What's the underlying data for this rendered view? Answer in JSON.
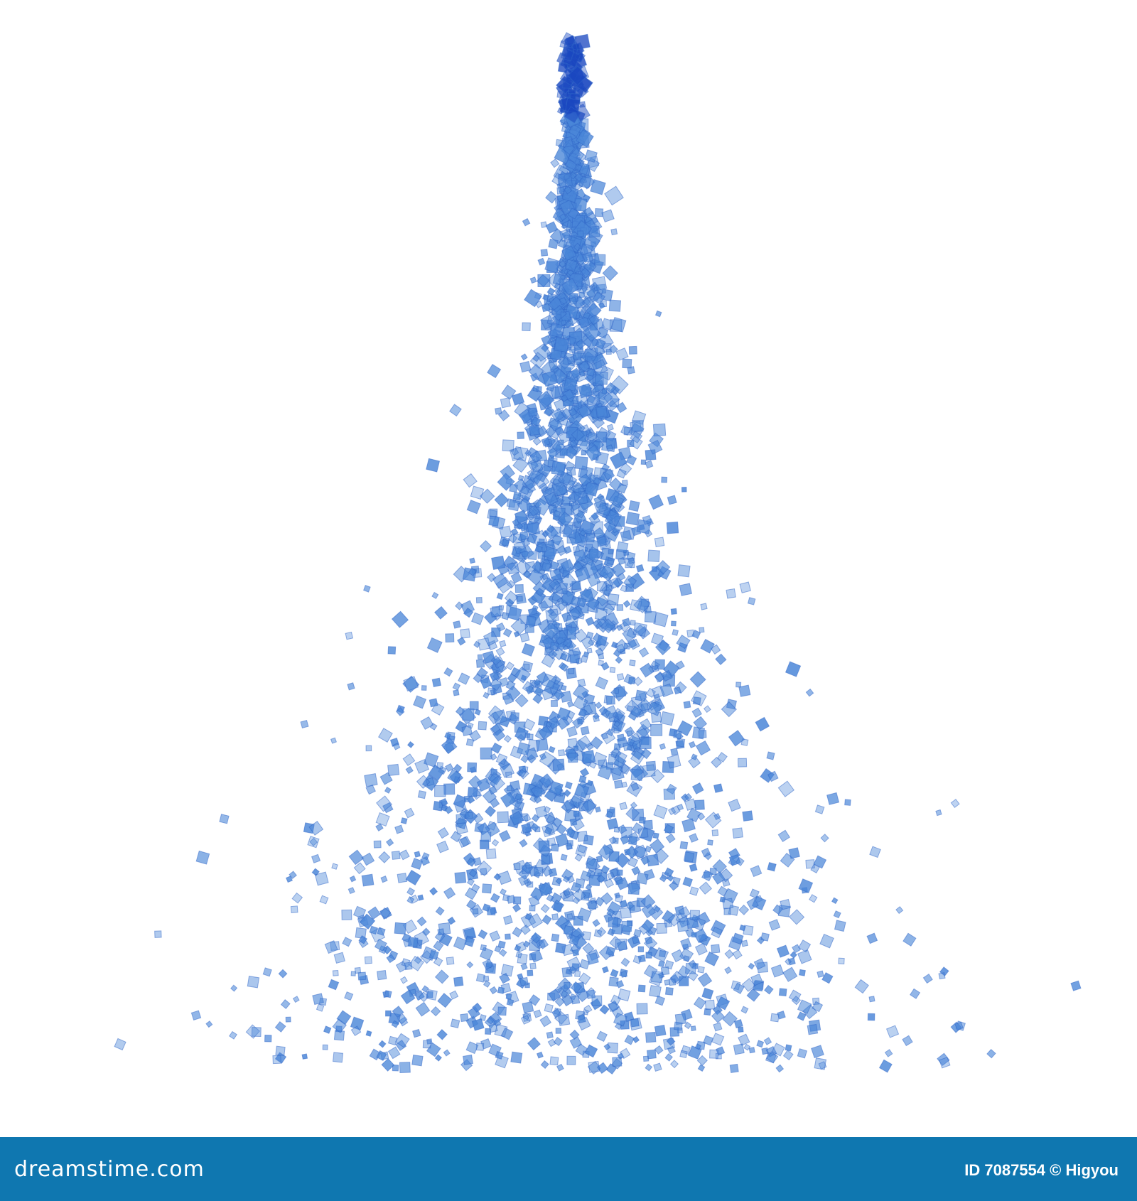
{
  "image": {
    "subject": "blue glass cubes in christmas tree shape",
    "colors": {
      "cube": "#4a86d8",
      "cube_dark": "#1a47c0",
      "background": "#ffffff"
    }
  },
  "footer": {
    "logo_text": "dreamstime.com",
    "credit": "ID 7087554 © Higyou",
    "background": "#0f77b0"
  }
}
